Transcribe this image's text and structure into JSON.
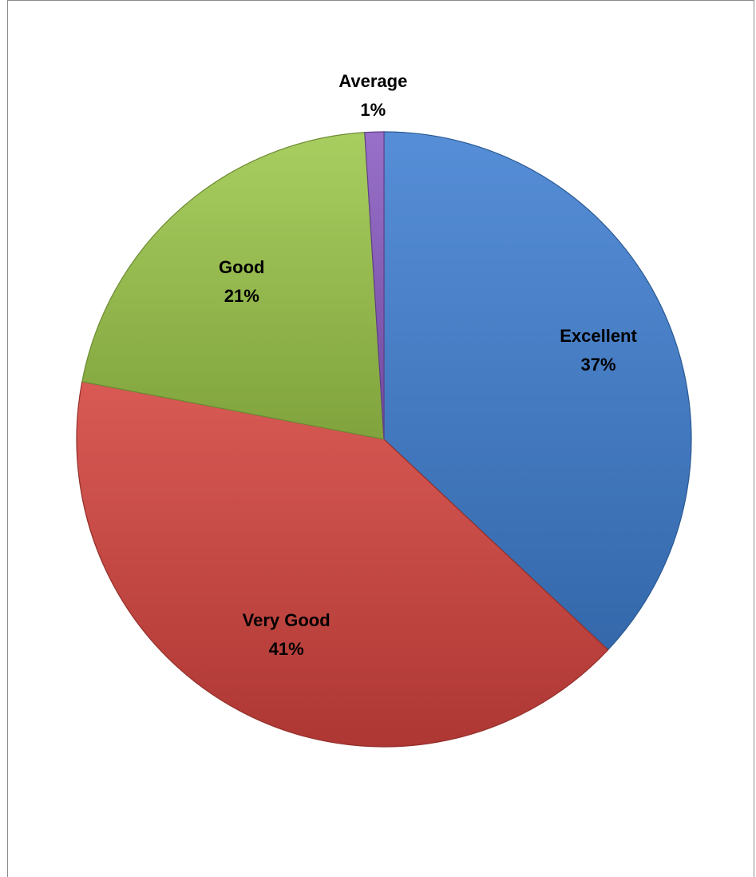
{
  "chart_data": {
    "type": "pie",
    "categories": [
      "Excellent",
      "Very Good",
      "Good",
      "Average"
    ],
    "values": [
      37,
      41,
      21,
      1
    ],
    "data_labels": [
      "37%",
      "41%",
      "21%",
      "1%"
    ],
    "colors": [
      "#3f7fd1",
      "#d4433e",
      "#9cc74a",
      "#8a5cc2"
    ],
    "start_angle_deg": 0,
    "direction": "clockwise",
    "legend": "none",
    "title": ""
  }
}
